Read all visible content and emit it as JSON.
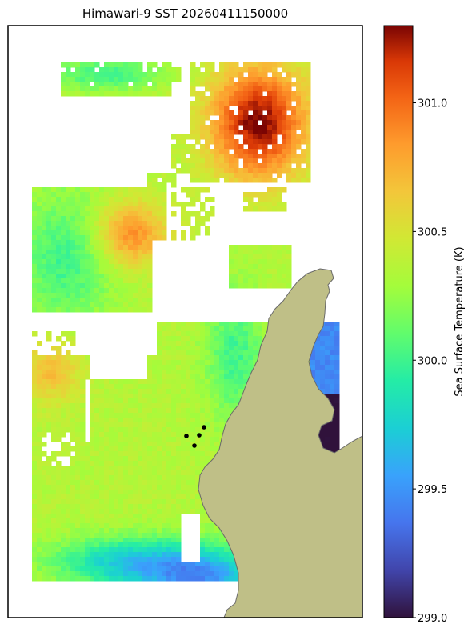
{
  "title": "Himawari-9 SST 20260411150000",
  "colorbar": {
    "label": "Sea Surface Temperature (K)",
    "vmin": 299.0,
    "vmax": 301.3,
    "ticks": [
      "299.0",
      "299.5",
      "300.0",
      "300.5",
      "301.0"
    ],
    "colormap": "turbo"
  },
  "colors": {
    "land": "#bfbf87",
    "coast": "#6a6a6a",
    "frame": "#000000",
    "stations": "#000000"
  },
  "station_markers": 4
}
